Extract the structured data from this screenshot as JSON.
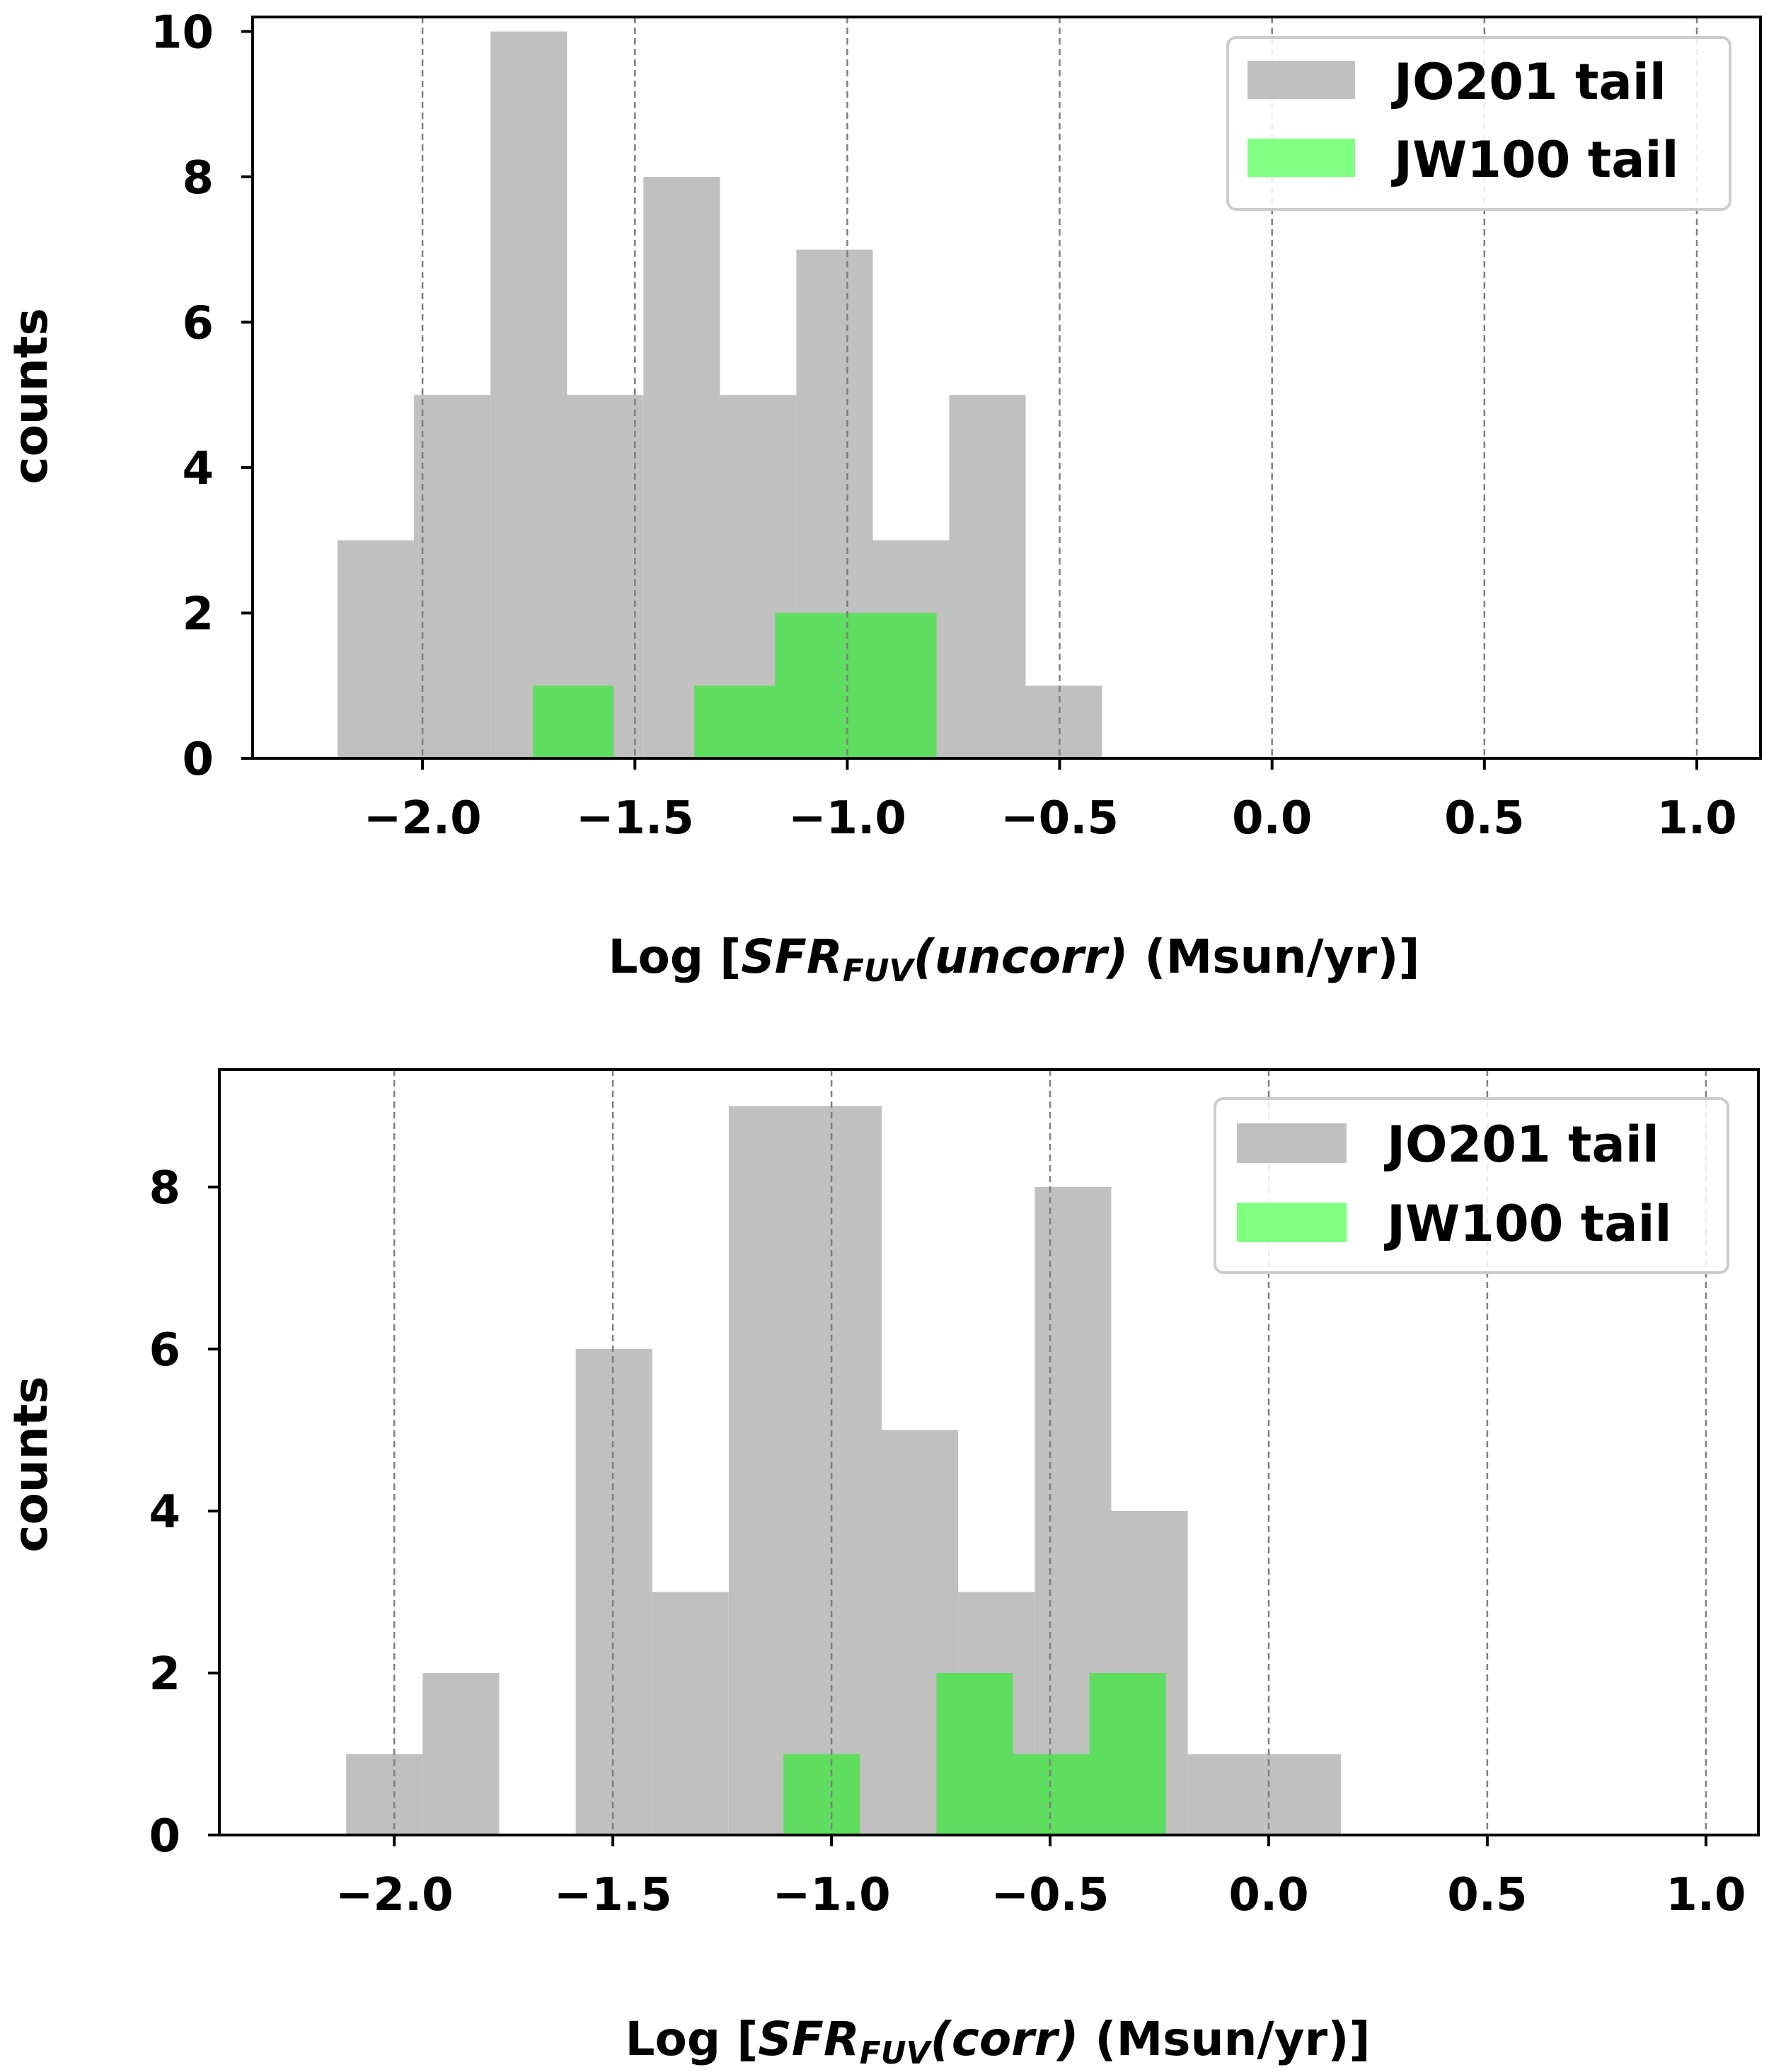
{
  "chart_data": [
    {
      "type": "bar",
      "subtype": "histogram",
      "xlabel_parts": {
        "prefix": "Log [",
        "var": "SFR",
        "sub": "FUV",
        "arg": "(uncorr)",
        "suffix": " (Msun/yr)]"
      },
      "ylabel": "counts",
      "xlim": [
        -2.4,
        1.15
      ],
      "ylim": [
        0,
        10.2
      ],
      "xticks": [
        -2.0,
        -1.5,
        -1.0,
        -0.5,
        0.0,
        0.5,
        1.0
      ],
      "xtick_labels": [
        "−2.0",
        "−1.5",
        "−1.0",
        "−0.5",
        "0.0",
        "0.5",
        "1.0"
      ],
      "yticks": [
        0,
        2,
        4,
        6,
        8,
        10
      ],
      "ytick_labels": [
        "0",
        "2",
        "4",
        "6",
        "8",
        "10"
      ],
      "grid": "x",
      "legend_position": "upper right",
      "series": [
        {
          "name": "JO201 tail",
          "color": "#c0c0c0",
          "bin_edges": [
            -2.2,
            -2.02,
            -1.84,
            -1.66,
            -1.48,
            -1.3,
            -1.12,
            -0.94,
            -0.76,
            -0.58,
            -0.4
          ],
          "counts": [
            3,
            5,
            10,
            5,
            8,
            5,
            7,
            3,
            5,
            1
          ]
        },
        {
          "name": "JW100 tail",
          "color": "#5edd5e",
          "legend_color": "#80ff80",
          "bin_edges": [
            -1.74,
            -1.55,
            -1.36,
            -1.17,
            -0.98,
            -0.79
          ],
          "counts": [
            1,
            0,
            1,
            2,
            2
          ]
        }
      ]
    },
    {
      "type": "bar",
      "subtype": "histogram",
      "xlabel_parts": {
        "prefix": "Log [",
        "var": "SFR",
        "sub": "FUV",
        "arg": "(corr)",
        "suffix": " (Msun/yr)]"
      },
      "ylabel": "counts",
      "xlim": [
        -2.4,
        1.12
      ],
      "ylim": [
        0,
        9.45
      ],
      "xticks": [
        -2.0,
        -1.5,
        -1.0,
        -0.5,
        0.0,
        0.5,
        1.0
      ],
      "xtick_labels": [
        "−2.0",
        "−1.5",
        "−1.0",
        "−0.5",
        "0.0",
        "0.5",
        "1.0"
      ],
      "yticks": [
        0,
        2,
        4,
        6,
        8
      ],
      "ytick_labels": [
        "0",
        "2",
        "4",
        "6",
        "8"
      ],
      "grid": "x",
      "legend_position": "upper right",
      "series": [
        {
          "name": "JO201 tail",
          "color": "#c0c0c0",
          "bin_edges": [
            -2.11,
            -1.935,
            -1.76,
            -1.585,
            -1.41,
            -1.235,
            -1.06,
            -0.885,
            -0.71,
            -0.535,
            -0.36,
            -0.185,
            -0.01,
            0.165
          ],
          "counts": [
            1,
            2,
            0,
            6,
            3,
            9,
            9,
            5,
            3,
            8,
            4,
            1,
            1
          ]
        },
        {
          "name": "JW100 tail",
          "color": "#5edd5e",
          "legend_color": "#80ff80",
          "bin_edges": [
            -1.11,
            -0.935,
            -0.76,
            -0.585,
            -0.41,
            -0.235
          ],
          "counts": [
            1,
            0,
            2,
            1,
            2
          ]
        }
      ]
    }
  ]
}
